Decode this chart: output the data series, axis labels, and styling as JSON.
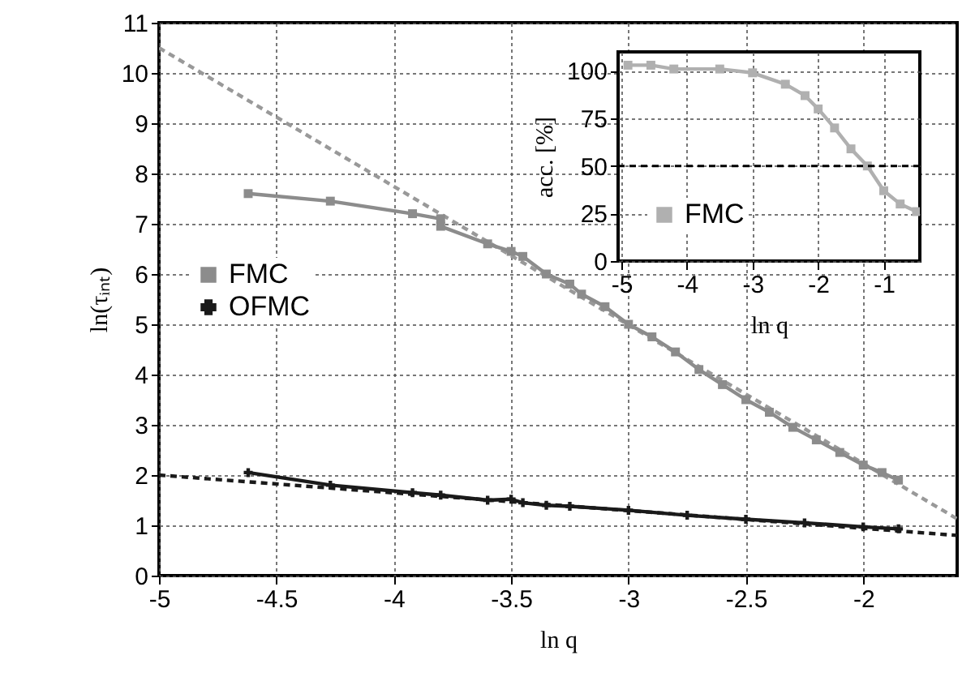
{
  "chart_data": [
    {
      "type": "line",
      "xlabel": "ln q",
      "ylabel": "ln(τᵢₙₜ)",
      "xlim": [
        -5,
        -1.6
      ],
      "ylim": [
        0,
        11
      ],
      "xticks": [
        -5,
        -4.5,
        -4,
        -3.5,
        -3,
        -2.5,
        -2
      ],
      "yticks": [
        0,
        1,
        2,
        3,
        4,
        5,
        6,
        7,
        8,
        9,
        10,
        11
      ],
      "grid": true,
      "legend": "left",
      "series": [
        {
          "type": "line",
          "color": "#999999",
          "line_style": "dashed",
          "marker": "none",
          "x": [
            -5,
            -1.6
          ],
          "values": [
            10.5,
            1.13
          ]
        },
        {
          "type": "line",
          "color": "#1a1a1a",
          "line_style": "dashed",
          "marker": "none",
          "x": [
            -5,
            -1.6
          ],
          "values": [
            2.0,
            0.8
          ]
        },
        {
          "name": "FMC",
          "color": "#8c8c8c",
          "marker": "square",
          "line_style": "solid",
          "x": [
            -4.62,
            -4.27,
            -3.92,
            -3.8,
            -3.8,
            -3.6,
            -3.5,
            -3.45,
            -3.35,
            -3.25,
            -3.2,
            -3.1,
            -3.0,
            -2.9,
            -2.8,
            -2.7,
            -2.6,
            -2.5,
            -2.4,
            -2.3,
            -2.2,
            -2.1,
            -2.0,
            -1.92,
            -1.85
          ],
          "values": [
            7.6,
            7.45,
            7.2,
            7.1,
            6.95,
            6.6,
            6.45,
            6.35,
            6.0,
            5.8,
            5.6,
            5.35,
            5.0,
            4.75,
            4.45,
            4.1,
            3.8,
            3.5,
            3.25,
            2.95,
            2.7,
            2.45,
            2.2,
            2.05,
            1.9
          ]
        },
        {
          "name": "OFMC",
          "color": "#1a1a1a",
          "marker": "cross",
          "line_style": "solid",
          "x": [
            -4.62,
            -4.27,
            -3.92,
            -3.8,
            -3.6,
            -3.5,
            -3.45,
            -3.35,
            -3.25,
            -3.0,
            -2.75,
            -2.5,
            -2.25,
            -2.0,
            -1.85
          ],
          "values": [
            2.05,
            1.8,
            1.65,
            1.6,
            1.5,
            1.52,
            1.45,
            1.4,
            1.38,
            1.3,
            1.2,
            1.12,
            1.05,
            0.97,
            0.93
          ]
        }
      ]
    },
    {
      "type": "line",
      "xlabel": "ln q",
      "ylabel": "acc. [%]",
      "xlim": [
        -5.05,
        -0.45
      ],
      "ylim": [
        0,
        110
      ],
      "xticks": [
        -5,
        -4,
        -3,
        -2,
        -1
      ],
      "yticks": [
        0,
        25,
        50,
        75,
        100
      ],
      "grid": true,
      "legend": "bottom left",
      "ref_lines": [
        {
          "axis": "y",
          "value": 50,
          "color": "#000000",
          "line_style": "dashed"
        }
      ],
      "series": [
        {
          "name": "FMC",
          "color": "#b0b0b0",
          "marker": "square",
          "line_style": "solid",
          "x": [
            -4.9,
            -4.55,
            -4.2,
            -3.5,
            -3.0,
            -2.5,
            -2.2,
            -2.0,
            -1.75,
            -1.5,
            -1.25,
            -1.0,
            -0.75,
            -0.5
          ],
          "values": [
            103,
            103,
            101,
            101,
            99,
            93,
            87,
            80,
            70,
            59,
            50,
            37,
            30,
            26
          ]
        }
      ]
    }
  ]
}
